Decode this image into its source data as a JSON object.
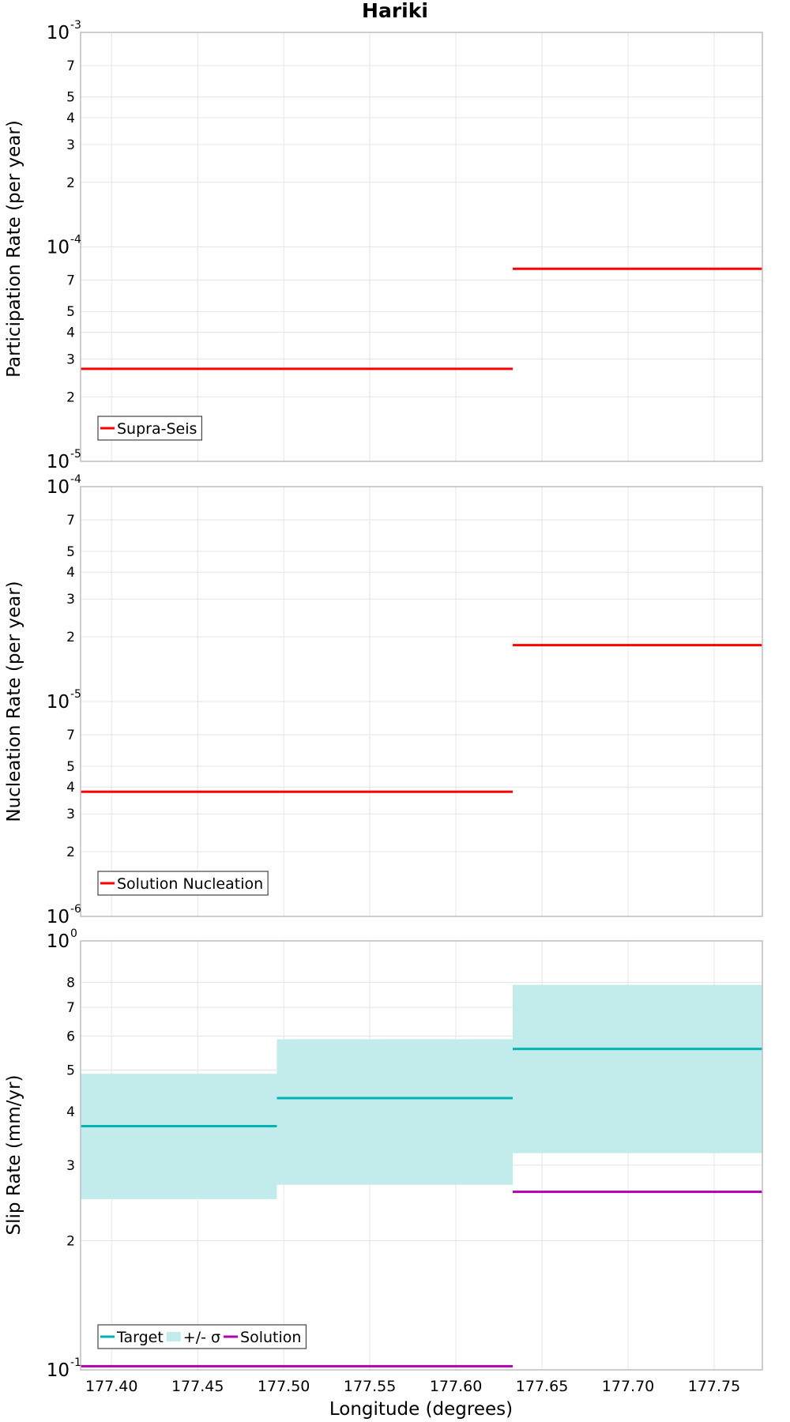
{
  "title": "Hariki",
  "xlabel": "Longitude (degrees)",
  "colors": {
    "red": "#ff0000",
    "target": "#00b2b2",
    "band": "#c2ecec",
    "solution": "#b000b0",
    "grid": "#e4e4e4",
    "frame": "#bdbdbd"
  },
  "chart_data": [
    {
      "type": "line",
      "panel": "participation",
      "ylabel": "Participation Rate (per year)",
      "yscale": "log",
      "ylim": [
        1e-05,
        0.001
      ],
      "xlim": [
        177.382,
        177.778
      ],
      "xticks": [
        "177.40",
        "177.45",
        "177.50",
        "177.55",
        "177.60",
        "177.65",
        "177.70",
        "177.75"
      ],
      "y_major_ticks": [
        {
          "base": "10",
          "exp": "-5",
          "value": 1e-05
        },
        {
          "base": "10",
          "exp": "-4",
          "value": 0.0001
        },
        {
          "base": "10",
          "exp": "-3",
          "value": 0.001
        }
      ],
      "y_minor_ticks": [
        {
          "label": "2",
          "value": 2e-05
        },
        {
          "label": "3",
          "value": 3e-05
        },
        {
          "label": "4",
          "value": 4e-05
        },
        {
          "label": "5",
          "value": 5e-05
        },
        {
          "label": "7",
          "value": 7e-05
        },
        {
          "label": "2",
          "value": 0.0002
        },
        {
          "label": "3",
          "value": 0.0003
        },
        {
          "label": "4",
          "value": 0.0004
        },
        {
          "label": "5",
          "value": 0.0005
        },
        {
          "label": "7",
          "value": 0.0007
        }
      ],
      "series": [
        {
          "name": "Supra-Seis",
          "color": "red",
          "segments": [
            {
              "x": [
                177.382,
                177.633
              ],
              "y": 2.7e-05
            },
            {
              "x": [
                177.633,
                177.778
              ],
              "y": 7.9e-05
            }
          ]
        }
      ],
      "legend": {
        "position": "bottom-left",
        "entries": [
          {
            "label": "Supra-Seis",
            "color": "red"
          }
        ]
      }
    },
    {
      "type": "line",
      "panel": "nucleation",
      "ylabel": "Nucleation Rate (per year)",
      "yscale": "log",
      "ylim": [
        1e-06,
        0.0001
      ],
      "xlim": [
        177.382,
        177.778
      ],
      "xticks": [
        "177.40",
        "177.45",
        "177.50",
        "177.55",
        "177.60",
        "177.65",
        "177.70",
        "177.75"
      ],
      "y_major_ticks": [
        {
          "base": "10",
          "exp": "-6",
          "value": 1e-06
        },
        {
          "base": "10",
          "exp": "-5",
          "value": 1e-05
        },
        {
          "base": "10",
          "exp": "-4",
          "value": 0.0001
        }
      ],
      "y_minor_ticks": [
        {
          "label": "2",
          "value": 2e-06
        },
        {
          "label": "3",
          "value": 3e-06
        },
        {
          "label": "4",
          "value": 4e-06
        },
        {
          "label": "5",
          "value": 5e-06
        },
        {
          "label": "7",
          "value": 7e-06
        },
        {
          "label": "2",
          "value": 2e-05
        },
        {
          "label": "3",
          "value": 3e-05
        },
        {
          "label": "4",
          "value": 4e-05
        },
        {
          "label": "5",
          "value": 5e-05
        },
        {
          "label": "7",
          "value": 7e-05
        }
      ],
      "series": [
        {
          "name": "Solution Nucleation",
          "color": "red",
          "segments": [
            {
              "x": [
                177.382,
                177.633
              ],
              "y": 3.8e-06
            },
            {
              "x": [
                177.633,
                177.778
              ],
              "y": 1.83e-05
            }
          ]
        }
      ],
      "legend": {
        "position": "bottom-left",
        "entries": [
          {
            "label": "Solution Nucleation",
            "color": "red"
          }
        ]
      }
    },
    {
      "type": "line",
      "panel": "sliprate",
      "ylabel": "Slip Rate (mm/yr)",
      "yscale": "log",
      "ylim": [
        0.1,
        1
      ],
      "xlim": [
        177.382,
        177.778
      ],
      "xticks": [
        "177.40",
        "177.45",
        "177.50",
        "177.55",
        "177.60",
        "177.65",
        "177.70",
        "177.75"
      ],
      "y_major_ticks": [
        {
          "base": "10",
          "exp": "-1",
          "value": 0.1
        },
        {
          "base": "10",
          "exp": "0",
          "value": 1
        }
      ],
      "y_minor_ticks": [
        {
          "label": "2",
          "value": 0.2
        },
        {
          "label": "3",
          "value": 0.3
        },
        {
          "label": "4",
          "value": 0.4
        },
        {
          "label": "5",
          "value": 0.5
        },
        {
          "label": "6",
          "value": 0.6
        },
        {
          "label": "7",
          "value": 0.7
        },
        {
          "label": "8",
          "value": 0.8
        }
      ],
      "bands": [
        {
          "x": [
            177.382,
            177.496
          ],
          "y": [
            0.25,
            0.49
          ]
        },
        {
          "x": [
            177.496,
            177.633
          ],
          "y": [
            0.27,
            0.59
          ]
        },
        {
          "x": [
            177.633,
            177.778
          ],
          "y": [
            0.32,
            0.79
          ]
        }
      ],
      "series": [
        {
          "name": "Target",
          "color": "target",
          "segments": [
            {
              "x": [
                177.382,
                177.496
              ],
              "y": 0.37
            },
            {
              "x": [
                177.496,
                177.633
              ],
              "y": 0.43
            },
            {
              "x": [
                177.633,
                177.778
              ],
              "y": 0.56
            }
          ]
        },
        {
          "name": "Solution",
          "color": "solution",
          "segments": [
            {
              "x": [
                177.382,
                177.633
              ],
              "y": 0.102
            },
            {
              "x": [
                177.633,
                177.778
              ],
              "y": 0.26
            }
          ]
        }
      ],
      "legend": {
        "position": "bottom-left",
        "entries": [
          {
            "label": "Target",
            "color": "target",
            "kind": "line"
          },
          {
            "label": "+/- σ",
            "color": "band",
            "kind": "band"
          },
          {
            "label": "Solution",
            "color": "solution",
            "kind": "line"
          }
        ]
      }
    }
  ]
}
